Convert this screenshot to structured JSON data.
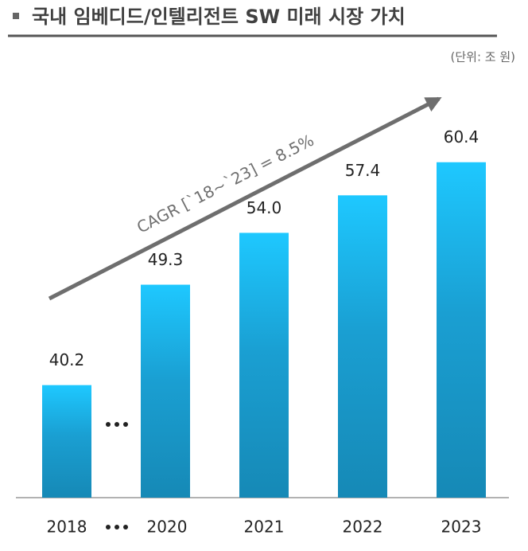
{
  "chart_data": {
    "type": "bar",
    "title": "국내 임베디드/인텔리전트 SW 미래 시장 가치",
    "subtitle": "(단위: 조 원)",
    "annotation": "CAGR [`18~`23] = 8.5%",
    "categories": [
      "2018",
      "2020",
      "2021",
      "2022",
      "2023"
    ],
    "values": [
      40.2,
      49.3,
      54.0,
      57.4,
      60.4
    ],
    "value_labels": [
      "40.2",
      "49.3",
      "54.0",
      "57.4",
      "60.4"
    ],
    "ylim": [
      30,
      65
    ]
  }
}
